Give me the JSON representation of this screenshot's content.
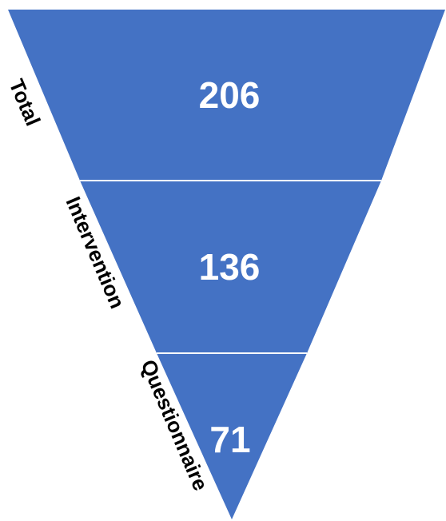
{
  "funnel": {
    "fill_color": "#4472c4",
    "divider_color": "#ffffff",
    "value_color": "#ffffff",
    "label_color": "#000000",
    "levels": [
      {
        "label": "Total",
        "value": "206"
      },
      {
        "label": "Intervention",
        "value": "136"
      },
      {
        "label": "Questionnaire",
        "value": "71"
      }
    ]
  }
}
